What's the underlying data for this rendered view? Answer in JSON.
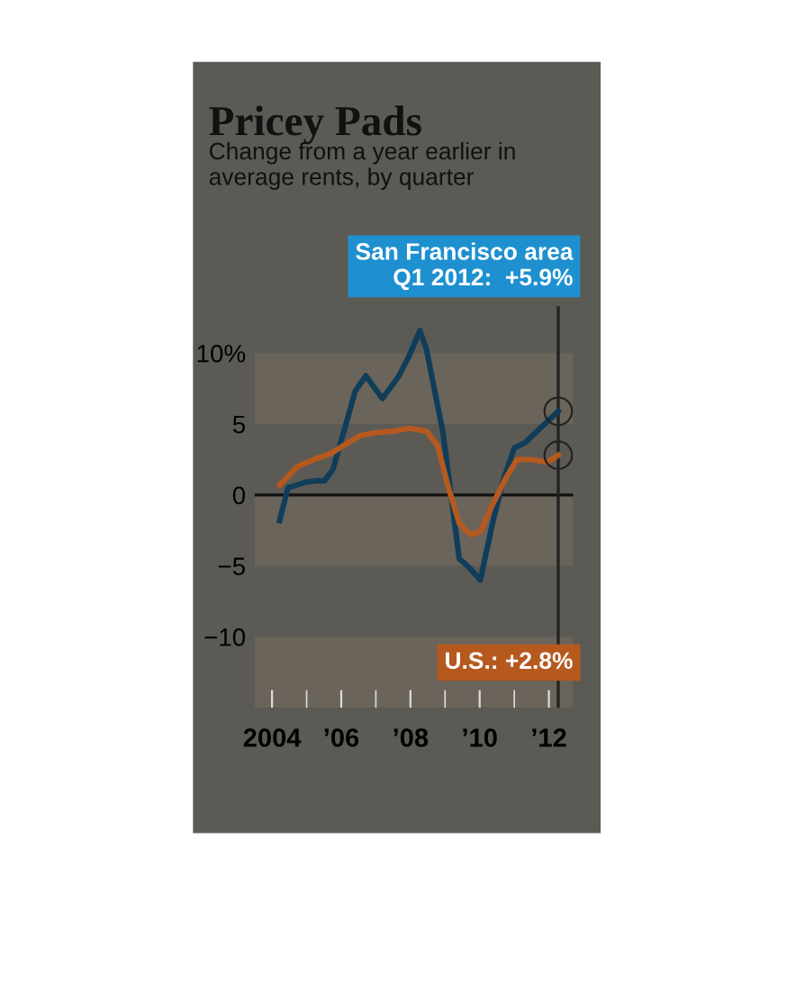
{
  "chart_data": {
    "type": "line",
    "title": "Pricey Pads",
    "subtitle": "Change from a year earlier in\naverage rents, by quarter",
    "x": [
      2004.22,
      2004.46,
      2004.97,
      2005.29,
      2005.52,
      2005.76,
      2006.16,
      2006.4,
      2006.71,
      2007.19,
      2007.67,
      2007.98,
      2008.27,
      2008.46,
      2008.94,
      2009.41,
      2009.65,
      2010.02,
      2010.37,
      2010.68,
      2011.0,
      2011.32,
      2011.79,
      2012.27
    ],
    "series": [
      {
        "color": "#0f3d5a",
        "values": [
          -1.8,
          0.5,
          0.9,
          1.0,
          1.0,
          1.8,
          5.2,
          7.3,
          8.4,
          6.8,
          8.4,
          9.9,
          11.6,
          10.3,
          4.4,
          -4.5,
          -5.0,
          -6.0,
          -2.0,
          1.0,
          3.3,
          3.7,
          4.8,
          5.9
        ]
      },
      {
        "color": "#b5591f",
        "x": [
          2004.22,
          2004.73,
          2005.21,
          2005.68,
          2006.08,
          2006.56,
          2007.03,
          2007.51,
          2007.98,
          2008.46,
          2008.78,
          2009.1,
          2009.41,
          2009.73,
          2010.02,
          2010.37,
          2010.76,
          2011.08,
          2011.48,
          2011.95,
          2012.27
        ],
        "values": [
          0.7,
          2.0,
          2.5,
          2.9,
          3.5,
          4.2,
          4.4,
          4.5,
          4.7,
          4.5,
          3.5,
          0.5,
          -2.0,
          -2.8,
          -2.6,
          -0.7,
          1.2,
          2.5,
          2.5,
          2.3,
          2.8
        ]
      }
    ],
    "annotations": [
      "San Francisco area\nQ1 2012:  +5.9%",
      "U.S.: +2.8%"
    ],
    "xlim": [
      2003.5,
      2012.7
    ],
    "ylim": [
      -15,
      13.3
    ],
    "xticks": [
      2004,
      {
        "value": 2006,
        "label": "’06"
      },
      {
        "value": 2008,
        "label": "’08"
      },
      {
        "value": 2010,
        "label": "’10"
      },
      {
        "value": 2012,
        "label": "’12"
      },
      {
        "value": 2005,
        "label": null
      },
      {
        "value": 2007,
        "label": null
      },
      {
        "value": 2009,
        "label": null
      },
      {
        "value": 2011,
        "label": null
      }
    ],
    "yticks": [
      {
        "value": 10,
        "label": "10%"
      },
      5,
      0,
      {
        "value": -5,
        "label": "−5"
      },
      {
        "value": -10,
        "label": "−10"
      }
    ],
    "ref_lines": [
      {
        "axis": "y",
        "value": 0,
        "color": "#111111"
      },
      {
        "axis": "x",
        "value": 2012.27,
        "color": "#222222"
      }
    ],
    "bands": [
      {
        "axis": "y",
        "from": 5,
        "to": 10,
        "color": "#6a645a"
      },
      {
        "axis": "y",
        "from": -5,
        "to": 0,
        "color": "#6a645a"
      },
      {
        "axis": "y",
        "from": -15,
        "to": -10,
        "color": "#6a645a"
      }
    ],
    "grid": false,
    "legend": false,
    "marker": "none",
    "line_style": "solid"
  }
}
